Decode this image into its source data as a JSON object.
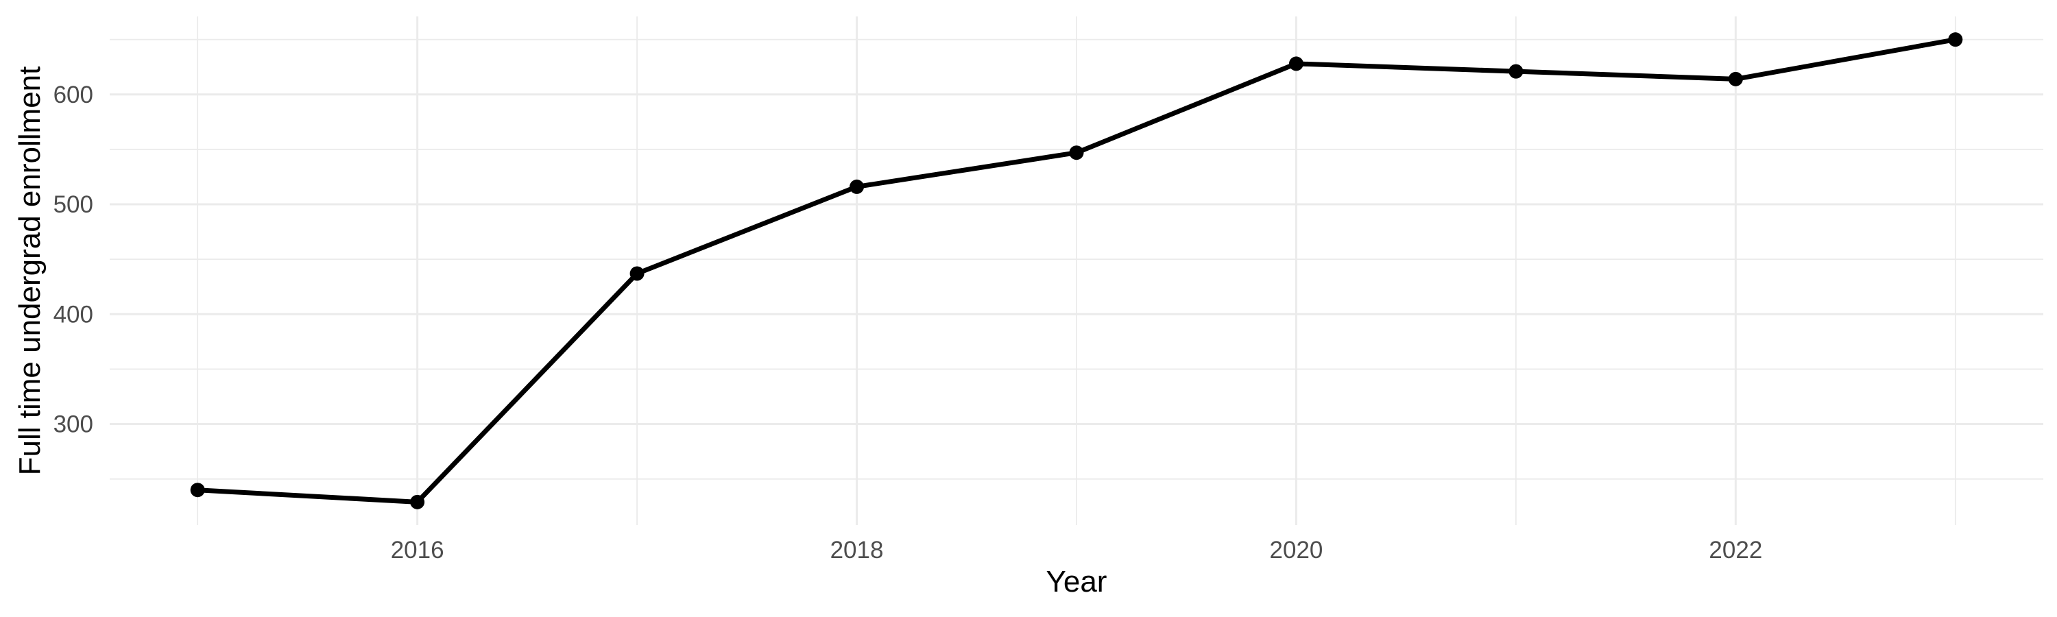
{
  "figure": {
    "background_color": "#FFFFFF"
  },
  "chart_data": {
    "type": "line",
    "title": "",
    "xlabel": "Year",
    "ylabel": "Full time undergrad enrollment",
    "x": [
      2015,
      2016,
      2017,
      2018,
      2019,
      2020,
      2021,
      2022,
      2023
    ],
    "series": [
      {
        "name": "Full time undergrad enrollment",
        "values": [
          240,
          229,
          437,
          516,
          547,
          628,
          621,
          614,
          650
        ]
      }
    ],
    "xlim": [
      2014.6,
      2023.4
    ],
    "ylim": [
      208,
      671
    ],
    "x_tick_values": [
      2016,
      2018,
      2020,
      2022
    ],
    "x_tick_labels": [
      "2016",
      "2018",
      "2020",
      "2022"
    ],
    "x_minor_gridlines": [
      2015,
      2017,
      2019,
      2021,
      2023
    ],
    "y_tick_values": [
      300,
      400,
      500,
      600
    ],
    "y_tick_labels": [
      "300",
      "400",
      "500",
      "600"
    ],
    "y_minor_gridlines": [
      250,
      350,
      450,
      550,
      650
    ],
    "grid": "major+minor",
    "legend_position": "none",
    "style": {
      "line_color": "#000000",
      "point_color": "#000000",
      "grid_color": "#EBEBEB",
      "tick_label_color": "#4D4D4D",
      "axis_title_color": "#000000",
      "background_color": "#FFFFFF"
    }
  }
}
